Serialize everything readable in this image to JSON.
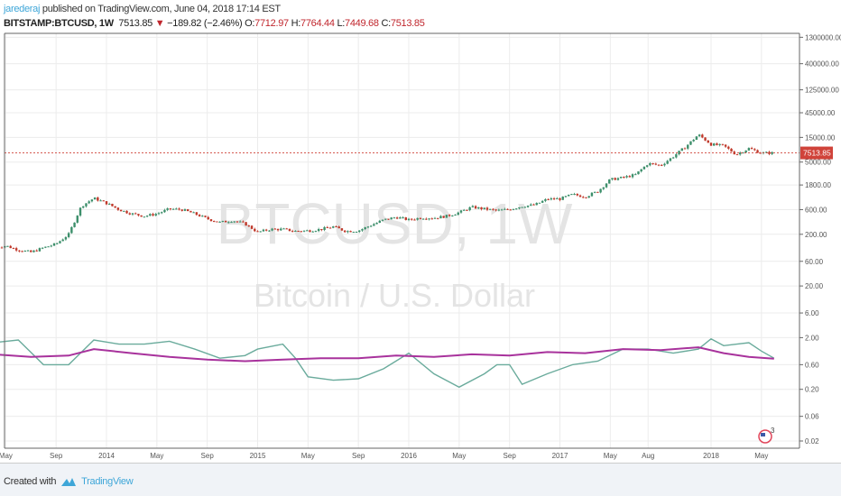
{
  "header": {
    "author": "jarederaj",
    "published_text": "published on TradingView.com, June 04, 2018 17:14 EST",
    "symbol": "BITSTAMP:BTCUSD, 1W",
    "last": "7513.85",
    "change": "−189.82 (−2.46%)",
    "o_label": "O:",
    "o": "7712.97",
    "h_label": "H:",
    "h": "7764.44",
    "l_label": "L:",
    "l": "7449.68",
    "c_label": "C:",
    "c": "7513.85"
  },
  "watermark": {
    "title": "BTCUSD, 1W",
    "subtitle": "Bitcoin / U.S. Dollar"
  },
  "footer": {
    "created_with": "Created with",
    "brand": "TradingView"
  },
  "colors": {
    "up": "#3d8f6b",
    "down": "#c0392b",
    "teal": "#6aab9c",
    "purple": "#a8329c",
    "price_line": "#d0433a",
    "accent": "#3ea6d8"
  },
  "chart_data": {
    "type": "candlestick",
    "y_scale": "log",
    "grid": true,
    "last_price_label": "7513.85",
    "y_ticks": [
      "1300000.00",
      "400000.00",
      "125000.00",
      "45000.00",
      "15000.00",
      "5000.00",
      "1800.00",
      "600.00",
      "200.00",
      "60.00",
      "20.00",
      "6.00",
      "2.00",
      "0.60",
      "0.20",
      "0.06",
      "0.02"
    ],
    "x_ticks": [
      {
        "label": "May",
        "date": "2013-05"
      },
      {
        "label": "Sep",
        "date": "2013-09"
      },
      {
        "label": "2014",
        "date": "2014-01"
      },
      {
        "label": "May",
        "date": "2014-05"
      },
      {
        "label": "Sep",
        "date": "2014-09"
      },
      {
        "label": "2015",
        "date": "2015-01"
      },
      {
        "label": "May",
        "date": "2015-05"
      },
      {
        "label": "Sep",
        "date": "2015-09"
      },
      {
        "label": "2016",
        "date": "2016-01"
      },
      {
        "label": "May",
        "date": "2016-05"
      },
      {
        "label": "Sep",
        "date": "2016-09"
      },
      {
        "label": "2017",
        "date": "2017-01"
      },
      {
        "label": "May",
        "date": "2017-05"
      },
      {
        "label": "Aug",
        "date": "2017-08"
      },
      {
        "label": "2018",
        "date": "2018-01"
      },
      {
        "label": "May",
        "date": "2018-05"
      }
    ],
    "price_monthly_close": [
      [
        "2013-04",
        110
      ],
      [
        "2013-05",
        120
      ],
      [
        "2013-06",
        100
      ],
      [
        "2013-07",
        90
      ],
      [
        "2013-08",
        110
      ],
      [
        "2013-09",
        130
      ],
      [
        "2013-10",
        200
      ],
      [
        "2013-11",
        700
      ],
      [
        "2013-12",
        1000
      ],
      [
        "2014-01",
        800
      ],
      [
        "2014-02",
        600
      ],
      [
        "2014-03",
        500
      ],
      [
        "2014-04",
        450
      ],
      [
        "2014-05",
        500
      ],
      [
        "2014-06",
        620
      ],
      [
        "2014-07",
        600
      ],
      [
        "2014-08",
        500
      ],
      [
        "2014-09",
        400
      ],
      [
        "2014-10",
        340
      ],
      [
        "2014-11",
        370
      ],
      [
        "2014-12",
        320
      ],
      [
        "2015-01",
        220
      ],
      [
        "2015-02",
        250
      ],
      [
        "2015-03",
        250
      ],
      [
        "2015-04",
        230
      ],
      [
        "2015-05",
        235
      ],
      [
        "2015-06",
        250
      ],
      [
        "2015-07",
        280
      ],
      [
        "2015-08",
        230
      ],
      [
        "2015-09",
        235
      ],
      [
        "2015-10",
        300
      ],
      [
        "2015-11",
        380
      ],
      [
        "2015-12",
        430
      ],
      [
        "2016-01",
        380
      ],
      [
        "2016-02",
        420
      ],
      [
        "2016-03",
        415
      ],
      [
        "2016-04",
        450
      ],
      [
        "2016-05",
        530
      ],
      [
        "2016-06",
        670
      ],
      [
        "2016-07",
        620
      ],
      [
        "2016-08",
        575
      ],
      [
        "2016-09",
        610
      ],
      [
        "2016-10",
        700
      ],
      [
        "2016-11",
        740
      ],
      [
        "2016-12",
        960
      ],
      [
        "2017-01",
        970
      ],
      [
        "2017-02",
        1180
      ],
      [
        "2017-03",
        1070
      ],
      [
        "2017-04",
        1350
      ],
      [
        "2017-05",
        2300
      ],
      [
        "2017-06",
        2500
      ],
      [
        "2017-07",
        2850
      ],
      [
        "2017-08",
        4700
      ],
      [
        "2017-09",
        4300
      ],
      [
        "2017-10",
        6400
      ],
      [
        "2017-11",
        10000
      ],
      [
        "2017-12",
        17000
      ],
      [
        "2018-01",
        11000
      ],
      [
        "2018-02",
        10300
      ],
      [
        "2018-03",
        7000
      ],
      [
        "2018-04",
        9200
      ],
      [
        "2018-05",
        7500
      ],
      [
        "2018-06",
        7514
      ]
    ],
    "indicator_teal": [
      [
        "2013-04",
        1.6
      ],
      [
        "2013-06",
        1.8
      ],
      [
        "2013-08",
        0.6
      ],
      [
        "2013-10",
        0.6
      ],
      [
        "2013-12",
        1.8
      ],
      [
        "2014-02",
        1.5
      ],
      [
        "2014-04",
        1.5
      ],
      [
        "2014-06",
        1.7
      ],
      [
        "2014-08",
        1.2
      ],
      [
        "2014-10",
        0.8
      ],
      [
        "2014-12",
        0.9
      ],
      [
        "2015-01",
        1.2
      ],
      [
        "2015-03",
        1.5
      ],
      [
        "2015-04",
        0.8
      ],
      [
        "2015-05",
        0.35
      ],
      [
        "2015-07",
        0.3
      ],
      [
        "2015-09",
        0.32
      ],
      [
        "2015-11",
        0.5
      ],
      [
        "2016-01",
        1.0
      ],
      [
        "2016-03",
        0.4
      ],
      [
        "2016-05",
        0.22
      ],
      [
        "2016-07",
        0.4
      ],
      [
        "2016-08",
        0.6
      ],
      [
        "2016-09",
        0.6
      ],
      [
        "2016-10",
        0.25
      ],
      [
        "2016-12",
        0.4
      ],
      [
        "2017-02",
        0.6
      ],
      [
        "2017-04",
        0.7
      ],
      [
        "2017-06",
        1.2
      ],
      [
        "2017-08",
        1.2
      ],
      [
        "2017-10",
        1.0
      ],
      [
        "2017-12",
        1.2
      ],
      [
        "2018-01",
        1.9
      ],
      [
        "2018-02",
        1.4
      ],
      [
        "2018-04",
        1.6
      ],
      [
        "2018-05",
        1.1
      ],
      [
        "2018-06",
        0.8
      ]
    ],
    "indicator_purple": [
      [
        "2013-04",
        0.95
      ],
      [
        "2013-07",
        0.85
      ],
      [
        "2013-10",
        0.9
      ],
      [
        "2013-12",
        1.2
      ],
      [
        "2014-03",
        1.0
      ],
      [
        "2014-06",
        0.85
      ],
      [
        "2014-09",
        0.75
      ],
      [
        "2014-12",
        0.7
      ],
      [
        "2015-03",
        0.75
      ],
      [
        "2015-06",
        0.8
      ],
      [
        "2015-09",
        0.8
      ],
      [
        "2015-12",
        0.9
      ],
      [
        "2016-03",
        0.85
      ],
      [
        "2016-06",
        0.95
      ],
      [
        "2016-09",
        0.9
      ],
      [
        "2016-12",
        1.05
      ],
      [
        "2017-03",
        1.0
      ],
      [
        "2017-06",
        1.2
      ],
      [
        "2017-09",
        1.15
      ],
      [
        "2017-12",
        1.3
      ],
      [
        "2018-02",
        1.0
      ],
      [
        "2018-04",
        0.85
      ],
      [
        "2018-06",
        0.78
      ]
    ]
  }
}
